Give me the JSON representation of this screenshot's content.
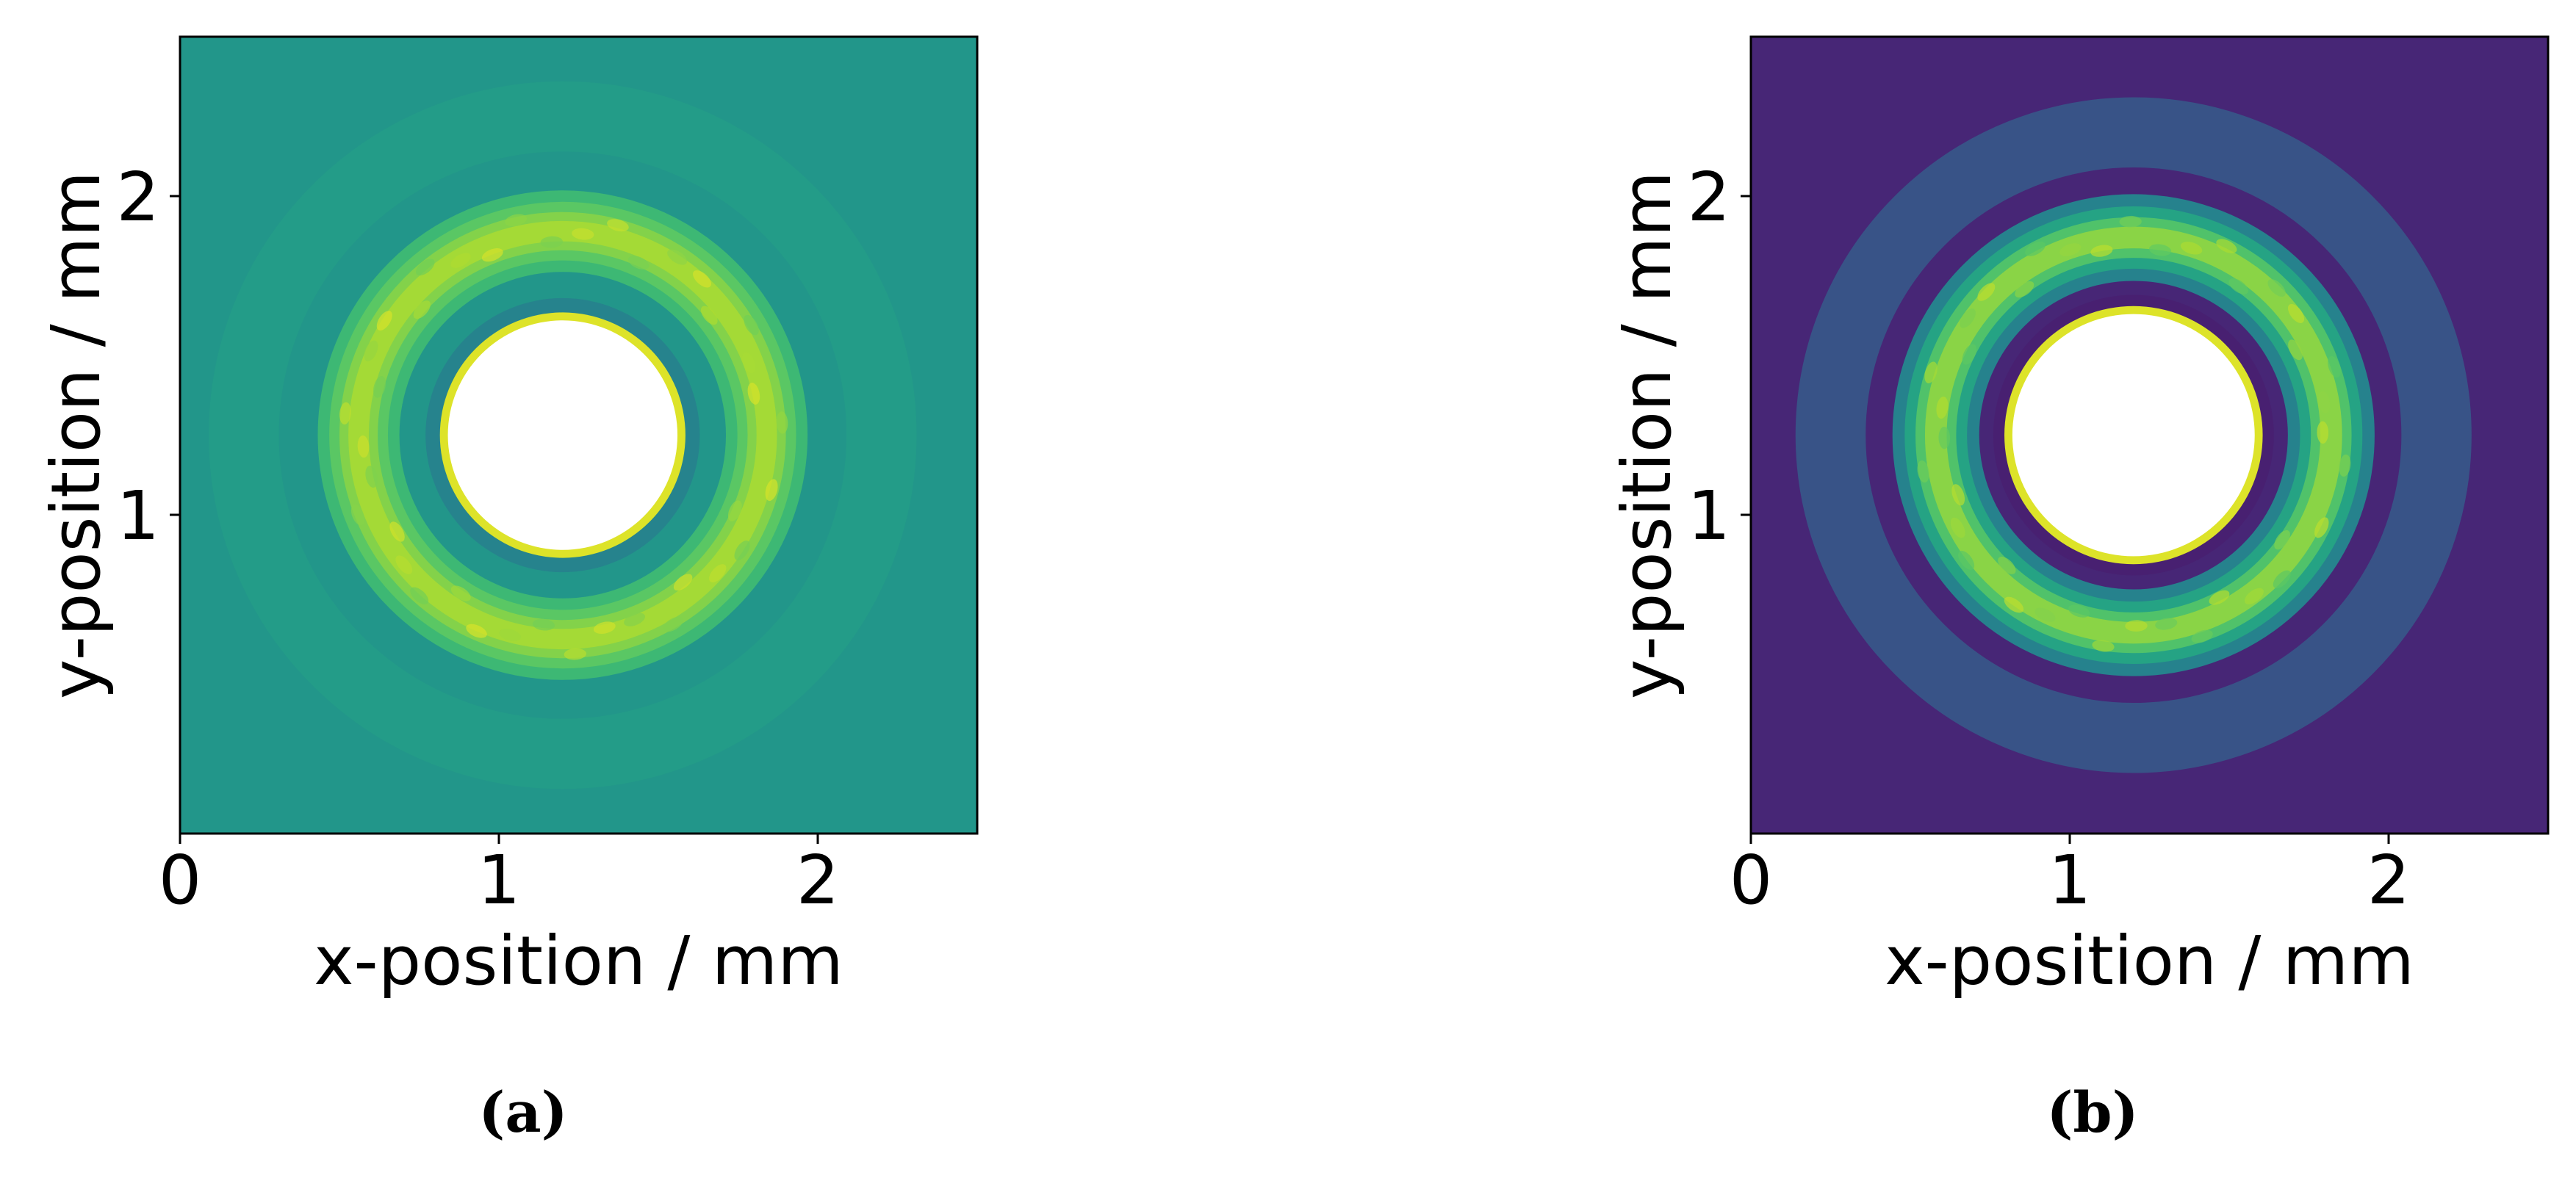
{
  "chart_data": [
    {
      "type": "heatmap",
      "caption": "(a)",
      "xlabel": "x-position / mm",
      "ylabel": "y-position / mm",
      "xlim": [
        0,
        2.5
      ],
      "ylim": [
        0,
        2.5
      ],
      "xticks": [
        0,
        1,
        2
      ],
      "yticks": [
        1,
        2
      ],
      "colormap": "viridis",
      "background_level": 0.52,
      "center": [
        1.2,
        1.25
      ],
      "saturated_core_radius": 0.36,
      "dark_gap_radius": 0.43,
      "bright_ring": {
        "radius": 0.64,
        "width": 0.16,
        "peak_level": 0.86
      },
      "outer_faint_ring": {
        "radius": 1.0,
        "level": 0.55
      },
      "grid": false
    },
    {
      "type": "heatmap",
      "caption": "(b)",
      "xlabel": "x-position / mm",
      "ylabel": "y-position / mm",
      "xlim": [
        0,
        2.5
      ],
      "ylim": [
        0,
        2.5
      ],
      "xticks": [
        0,
        1,
        2
      ],
      "yticks": [
        1,
        2
      ],
      "colormap": "viridis",
      "background_level": 0.13,
      "center": [
        1.2,
        1.25
      ],
      "saturated_core_radius": 0.38,
      "dark_gap_radius": 0.44,
      "bright_ring": {
        "radius": 0.62,
        "width": 0.17,
        "peak_level": 0.82
      },
      "outer_faint_ring": {
        "radius": 0.95,
        "level": 0.3
      },
      "grid": false
    }
  ]
}
